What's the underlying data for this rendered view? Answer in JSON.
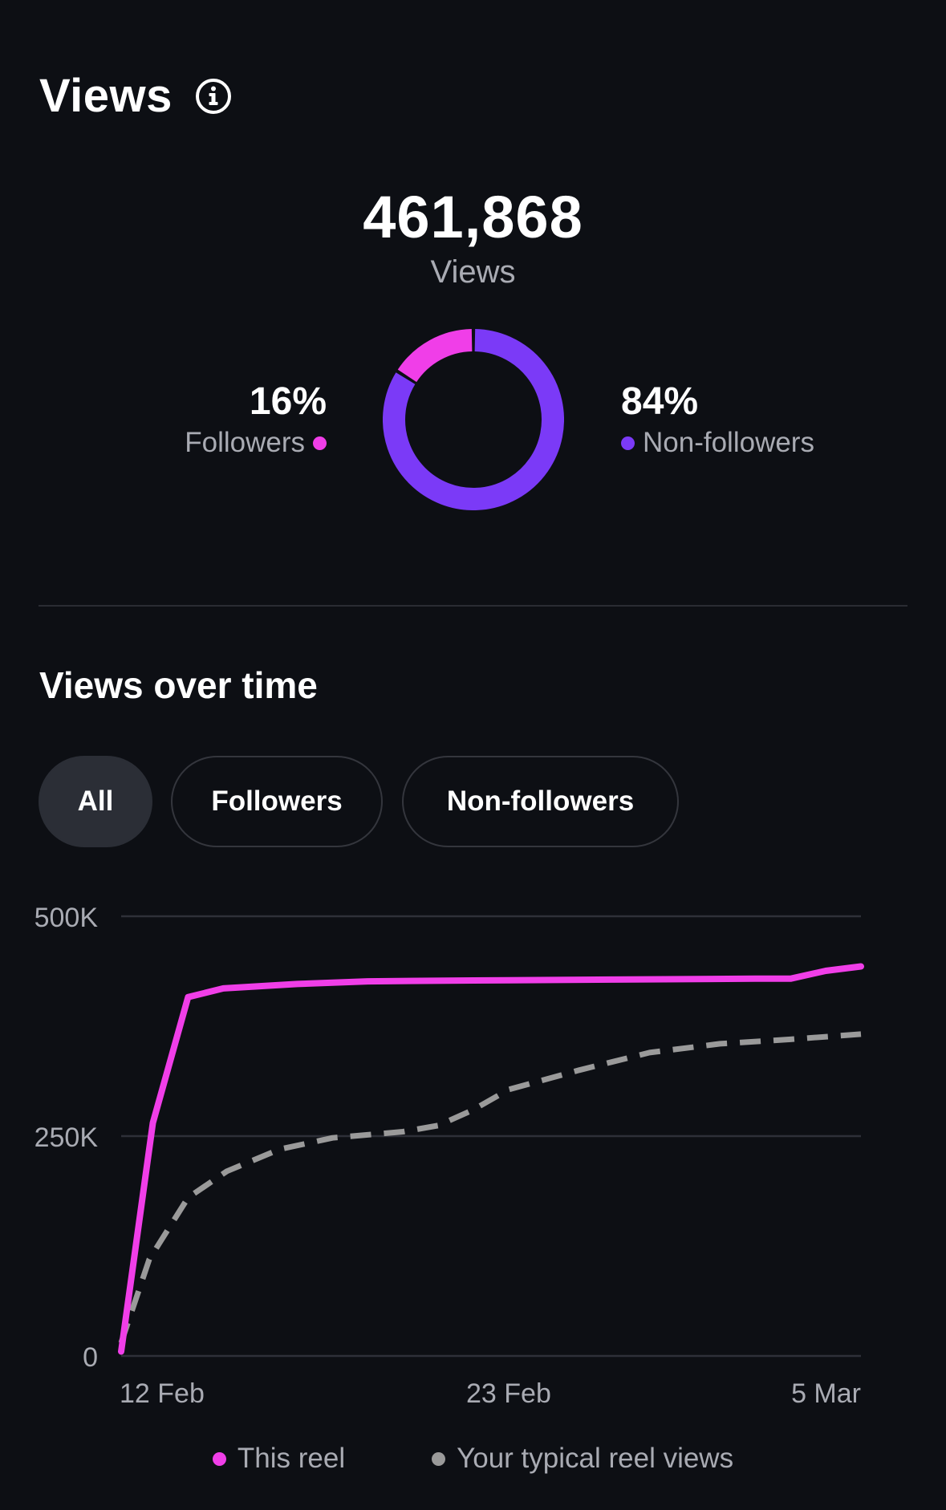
{
  "views_section": {
    "title": "Views",
    "total": "461,868",
    "total_label": "Views",
    "followers_pct": "16%",
    "followers_label": "Followers",
    "nonfollowers_pct": "84%",
    "nonfollowers_label": "Non-followers",
    "followers_share": 0.16,
    "nonfollowers_share": 0.84
  },
  "over_time": {
    "title": "Views over time",
    "filters": [
      {
        "label": "All",
        "active": true
      },
      {
        "label": "Followers",
        "active": false
      },
      {
        "label": "Non-followers",
        "active": false
      }
    ]
  },
  "colors": {
    "background": "#0d0f14",
    "followers": "#f03ee8",
    "nonfollowers": "#7b3af7",
    "typical": "#9a9a9a",
    "grid": "#2e3038",
    "muted_text": "#a9abb3"
  },
  "icons": {
    "info": "info-icon"
  },
  "chart_data": {
    "type": "line",
    "ylim": [
      0,
      500000
    ],
    "y_ticks": [
      {
        "value": 0,
        "label": "0"
      },
      {
        "value": 250000,
        "label": "250K"
      },
      {
        "value": 500000,
        "label": "500K"
      }
    ],
    "x_ticks": [
      {
        "x": 0,
        "label": "12 Feb"
      },
      {
        "x": 11,
        "label": "23 Feb"
      },
      {
        "x": 21,
        "label": "5 Mar"
      }
    ],
    "x_range": [
      0,
      21
    ],
    "series": [
      {
        "name": "This reel",
        "style": "solid",
        "points": [
          [
            0,
            5000
          ],
          [
            0.9,
            265000
          ],
          [
            1.9,
            408000
          ],
          [
            2.9,
            418000
          ],
          [
            5,
            423000
          ],
          [
            7,
            426000
          ],
          [
            10,
            427000
          ],
          [
            14,
            428000
          ],
          [
            18,
            429000
          ],
          [
            19,
            429000
          ],
          [
            20,
            438000
          ],
          [
            21,
            443000
          ]
        ]
      },
      {
        "name": "Your typical reel views",
        "style": "dashed",
        "points": [
          [
            0,
            15000
          ],
          [
            0.8,
            110000
          ],
          [
            1.9,
            180000
          ],
          [
            3,
            210000
          ],
          [
            4.5,
            235000
          ],
          [
            6,
            248000
          ],
          [
            8,
            255000
          ],
          [
            9,
            262000
          ],
          [
            10,
            280000
          ],
          [
            11,
            303000
          ],
          [
            13,
            325000
          ],
          [
            15,
            345000
          ],
          [
            17,
            355000
          ],
          [
            19,
            360000
          ],
          [
            21,
            366000
          ]
        ]
      }
    ]
  }
}
